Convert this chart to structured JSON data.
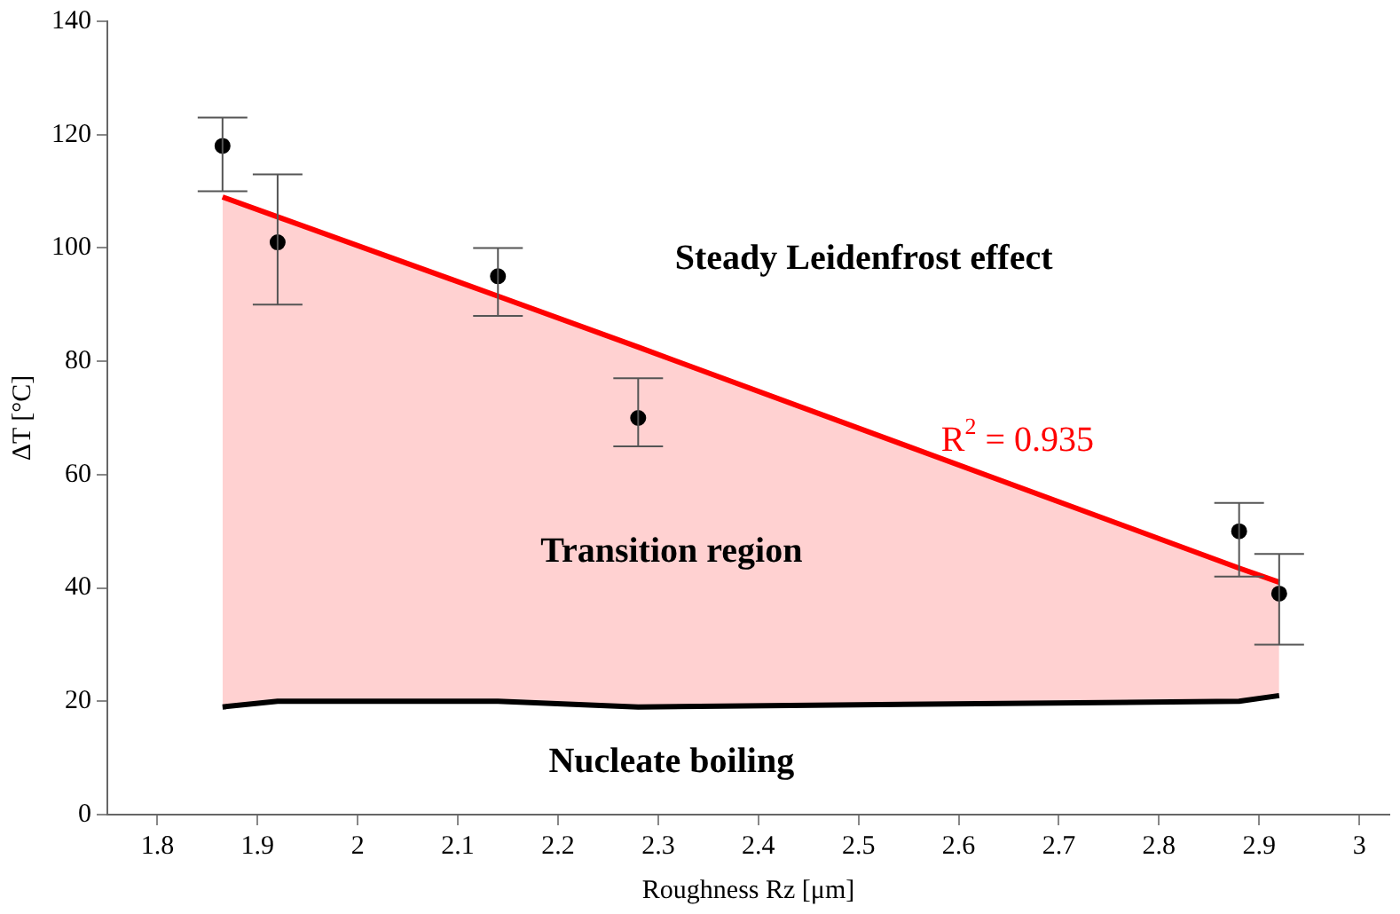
{
  "chart_data": {
    "type": "scatter",
    "xlabel": "Roughness Rz [μm]",
    "ylabel": "ΔT [°C]",
    "xlim": [
      1.75,
      3.03
    ],
    "xticks": [
      1.8,
      1.9,
      2,
      2.1,
      2.2,
      2.3,
      2.4,
      2.5,
      2.6,
      2.7,
      2.8,
      2.9,
      3
    ],
    "ylim": [
      0,
      140
    ],
    "yticks": [
      0,
      20,
      40,
      60,
      80,
      100,
      120,
      140
    ],
    "grid": false,
    "legend": false,
    "series": [
      {
        "type": "line",
        "color": "#ff0000",
        "x": [
          1.865,
          1.92,
          2.14,
          2.28,
          2.88,
          2.92
        ],
        "values": [
          109,
          105.5,
          91.5,
          82.5,
          43.5,
          41
        ],
        "lower": [
          19,
          20,
          20,
          19,
          20,
          21
        ],
        "upper": [
          109,
          105.5,
          91.5,
          82.5,
          43.5,
          41
        ]
      },
      {
        "type": "line",
        "color": "#000000",
        "x": [
          1.865,
          1.92,
          2.14,
          2.28,
          2.88,
          2.92
        ],
        "values": [
          19,
          20,
          20,
          19,
          20,
          21
        ]
      },
      {
        "color": "#000000",
        "x": [
          1.865,
          1.92,
          2.14,
          2.28,
          2.88,
          2.92
        ],
        "values": [
          118,
          101,
          95,
          70,
          50,
          39
        ],
        "marker": "circle",
        "errors": [
          [
            110,
            123
          ],
          [
            90,
            113
          ],
          [
            88,
            100
          ],
          [
            65,
            77
          ],
          [
            42,
            55
          ],
          [
            30,
            46
          ]
        ]
      }
    ],
    "annotations": [
      "Steady Leidenfrost effect",
      "Transition region",
      "Nucleate boiling",
      "R$^{2}$ = 0.935"
    ]
  }
}
